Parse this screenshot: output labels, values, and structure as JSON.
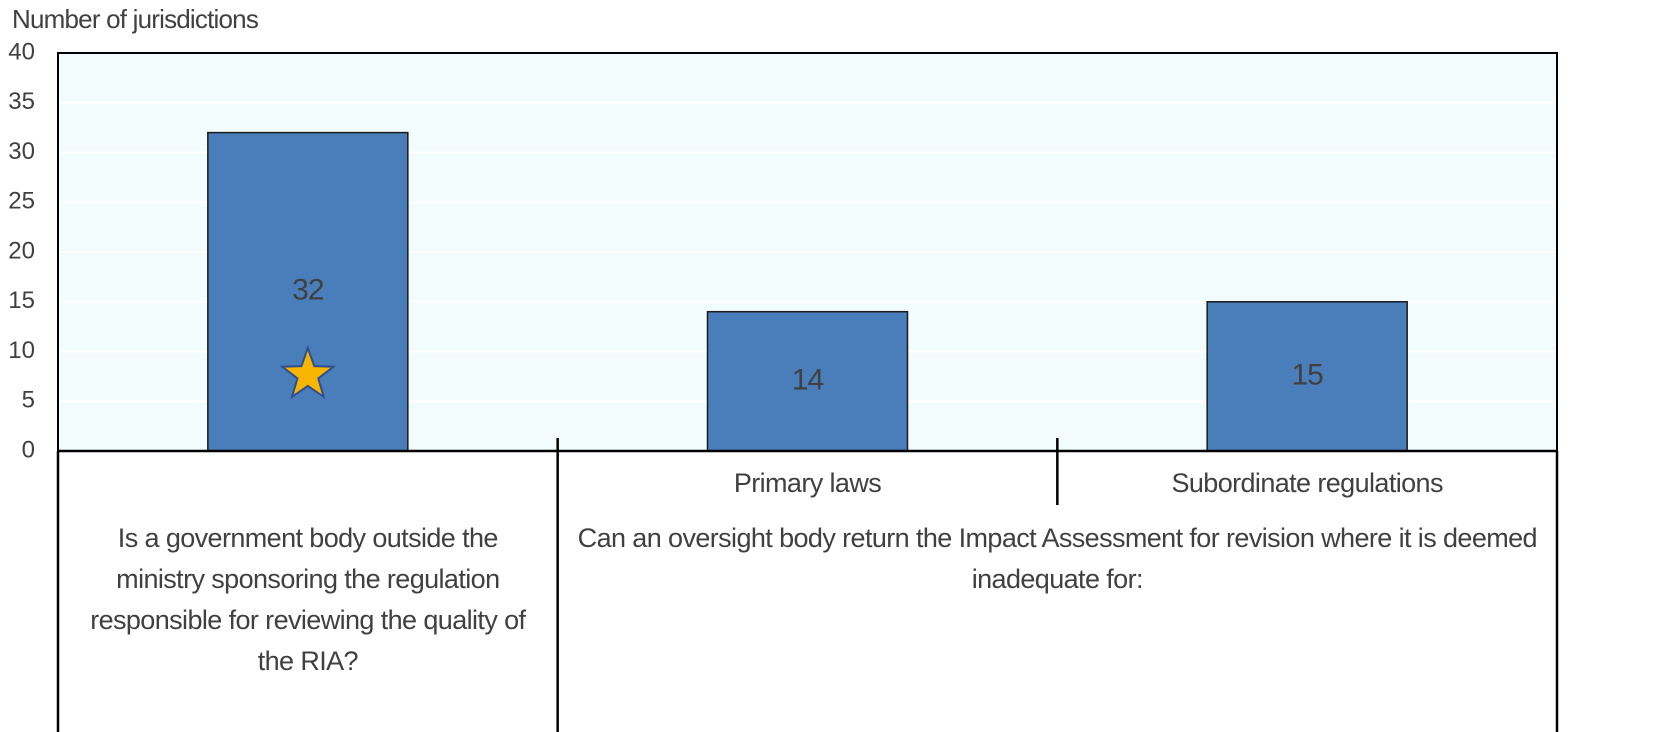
{
  "chart_data": {
    "type": "bar",
    "y_axis_label": "Number of jurisdictions",
    "categories": [
      null,
      "Primary laws",
      "Subordinate regulations"
    ],
    "values": [
      32,
      14,
      15
    ],
    "color": "#4a7ebb",
    "groups": [
      {
        "label": "Is a government body outside the ministry sponsoring the regulation responsible for reviewing the quality of the RIA?",
        "members": [
          0
        ]
      },
      {
        "label": "Can an oversight body return the Impact Assessment for revision where it is deemed inadequate for:",
        "members": [
          1,
          2
        ]
      }
    ],
    "ylim": [
      0,
      40
    ],
    "yticks": [
      0,
      5,
      10,
      15,
      20,
      25,
      30,
      35,
      40
    ],
    "grid": true
  }
}
